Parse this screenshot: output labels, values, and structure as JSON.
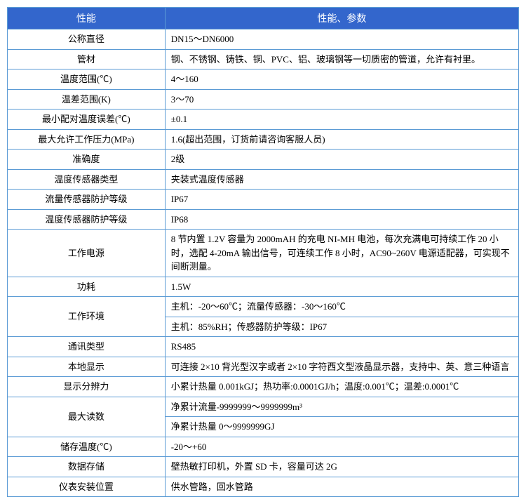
{
  "table": {
    "header": {
      "col1": "性能",
      "col2": "性能、参数"
    },
    "rows": [
      {
        "label": "公称直径",
        "value": "DN15～DN6000"
      },
      {
        "label": "管材",
        "value": "钢、不锈钢、铸铁、铜、PVC、铝、玻璃钢等一切质密的管道，允许有衬里。"
      },
      {
        "label": "温度范围(℃)",
        "value": "4～160"
      },
      {
        "label": "温差范围(K)",
        "value": "3～70"
      },
      {
        "label": "最小配对温度误差(℃)",
        "value": "±0.1"
      },
      {
        "label": "最大允许工作压力(MPa)",
        "value": "1.6(超出范围，订货前请咨询客服人员)"
      },
      {
        "label": "准确度",
        "value": "2级"
      },
      {
        "label": "温度传感器类型",
        "value": "夹装式温度传感器"
      },
      {
        "label": "流量传感器防护等级",
        "value": "IP67"
      },
      {
        "label": "温度传感器防护等级",
        "value": "IP68"
      },
      {
        "label": "工作电源",
        "value": "8 节内置 1.2V 容量为 2000mAH 的充电 NI-MH 电池，每次充满电可持续工作 20 小时，选配 4-20mA 输出信号，可连续工作 8 小时，AC90~260V 电源适配器，可实现不间断测量。"
      },
      {
        "label": "功耗",
        "value": "1.5W"
      },
      {
        "label": "工作环境",
        "value_rows": [
          "主机：-20～60℃；流量传感器：-30～160℃",
          "主机：85%RH；传感器防护等级：IP67"
        ]
      },
      {
        "label": "通讯类型",
        "value": "RS485"
      },
      {
        "label": "本地显示",
        "value": "可连接 2×10 背光型汉字或者 2×10 字符西文型液晶显示器，支持中、英、意三种语言"
      },
      {
        "label": "显示分辨力",
        "value": "小累计热量 0.001kGJ；热功率:0.0001GJ/h；温度:0.001℃；温差:0.0001℃"
      },
      {
        "label": "最大读数",
        "value_rows": [
          "净累计流量-9999999～9999999m³",
          "净累计热量 0～9999999GJ"
        ]
      },
      {
        "label": "储存温度(℃)",
        "value": "-20～+60"
      },
      {
        "label": "数据存储",
        "value": "壁热敏打印机，外置 SD 卡，容量可达 2G"
      },
      {
        "label": "仪表安装位置",
        "value": "供水管路，回水管路"
      }
    ]
  },
  "colors": {
    "header_bg": "#3366cc",
    "header_text": "#ffffff",
    "border": "#5b9bd5",
    "cell_bg": "#ffffff"
  }
}
